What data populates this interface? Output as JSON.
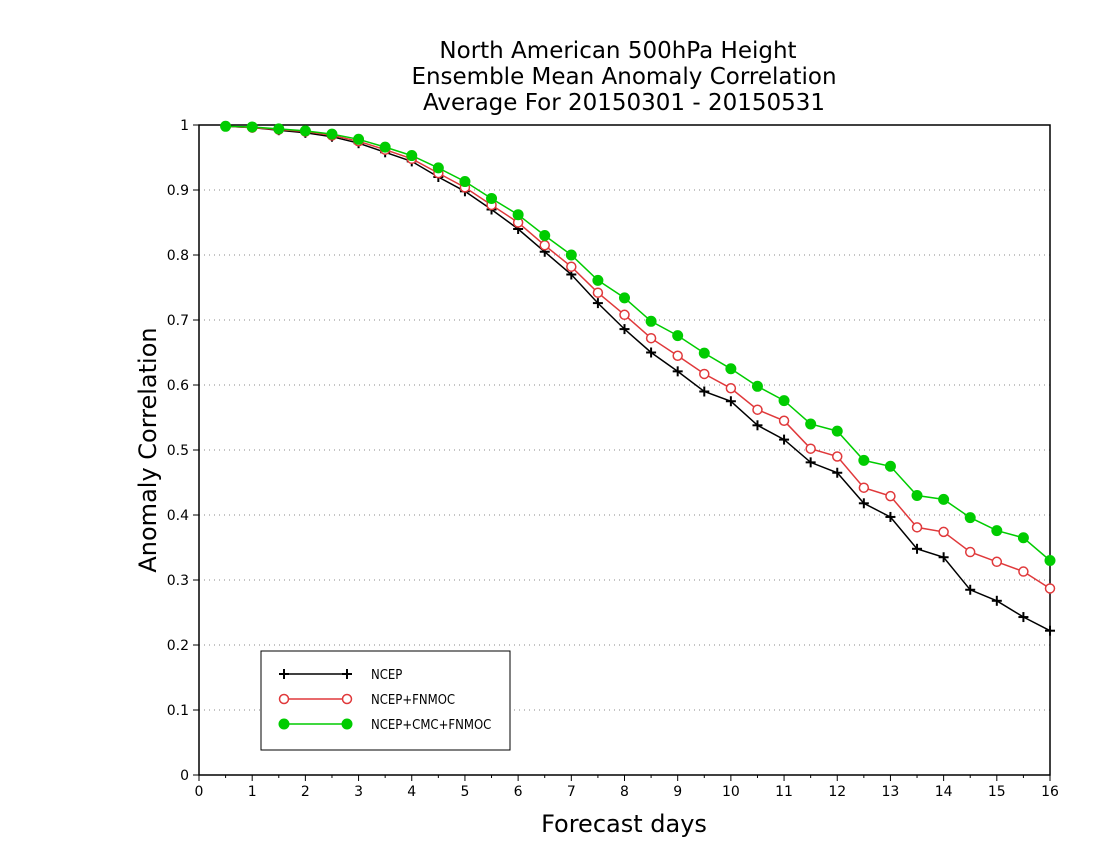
{
  "chart_data": {
    "type": "line",
    "title_lines": [
      "North American 500hPa Height",
      "Ensemble Mean Anomaly Correlation",
      "Average For 20150301 - 20150531"
    ],
    "xlabel": "Forecast days",
    "ylabel": "Anomaly Correlation",
    "xlim": [
      0,
      16
    ],
    "ylim": [
      0,
      1
    ],
    "x_ticks": [
      "0",
      "1",
      "2",
      "3",
      "4",
      "5",
      "6",
      "7",
      "8",
      "9",
      "10",
      "11",
      "12",
      "13",
      "14",
      "15",
      "16"
    ],
    "y_ticks": [
      "0",
      "0.1",
      "0.2",
      "0.3",
      "0.4",
      "0.5",
      "0.6",
      "0.7",
      "0.8",
      "0.9",
      "1"
    ],
    "grid": "horizontal dotted",
    "legend_position": "bottom-left",
    "x": [
      0.5,
      1,
      1.5,
      2,
      2.5,
      3,
      3.5,
      4,
      4.5,
      5,
      5.5,
      6,
      6.5,
      7,
      7.5,
      8,
      8.5,
      9,
      9.5,
      10,
      10.5,
      11,
      11.5,
      12,
      12.5,
      13,
      13.5,
      14,
      14.5,
      15,
      15.5,
      16
    ],
    "series": [
      {
        "name": "NCEP",
        "color": "#000000",
        "marker": "plus",
        "values": [
          0.998,
          0.996,
          0.992,
          0.988,
          0.982,
          0.972,
          0.958,
          0.944,
          0.92,
          0.898,
          0.87,
          0.84,
          0.805,
          0.77,
          0.726,
          0.686,
          0.65,
          0.621,
          0.59,
          0.575,
          0.538,
          0.516,
          0.481,
          0.465,
          0.418,
          0.397,
          0.348,
          0.335,
          0.285,
          0.268,
          0.243,
          0.222
        ]
      },
      {
        "name": "NCEP+FNMOC",
        "color": "#e0393b",
        "marker": "open-circle",
        "values": [
          0.998,
          0.996,
          0.993,
          0.99,
          0.984,
          0.975,
          0.962,
          0.948,
          0.926,
          0.904,
          0.877,
          0.85,
          0.815,
          0.782,
          0.742,
          0.708,
          0.672,
          0.645,
          0.617,
          0.595,
          0.562,
          0.545,
          0.502,
          0.49,
          0.442,
          0.429,
          0.381,
          0.374,
          0.343,
          0.328,
          0.313,
          0.287
        ]
      },
      {
        "name": "NCEP+CMC+FNMOC",
        "color": "#00cc00",
        "marker": "filled-circle",
        "values": [
          0.998,
          0.997,
          0.994,
          0.991,
          0.986,
          0.978,
          0.966,
          0.953,
          0.934,
          0.913,
          0.887,
          0.862,
          0.83,
          0.8,
          0.761,
          0.734,
          0.698,
          0.676,
          0.649,
          0.625,
          0.598,
          0.576,
          0.54,
          0.529,
          0.484,
          0.475,
          0.43,
          0.424,
          0.396,
          0.376,
          0.365,
          0.33
        ]
      }
    ]
  }
}
